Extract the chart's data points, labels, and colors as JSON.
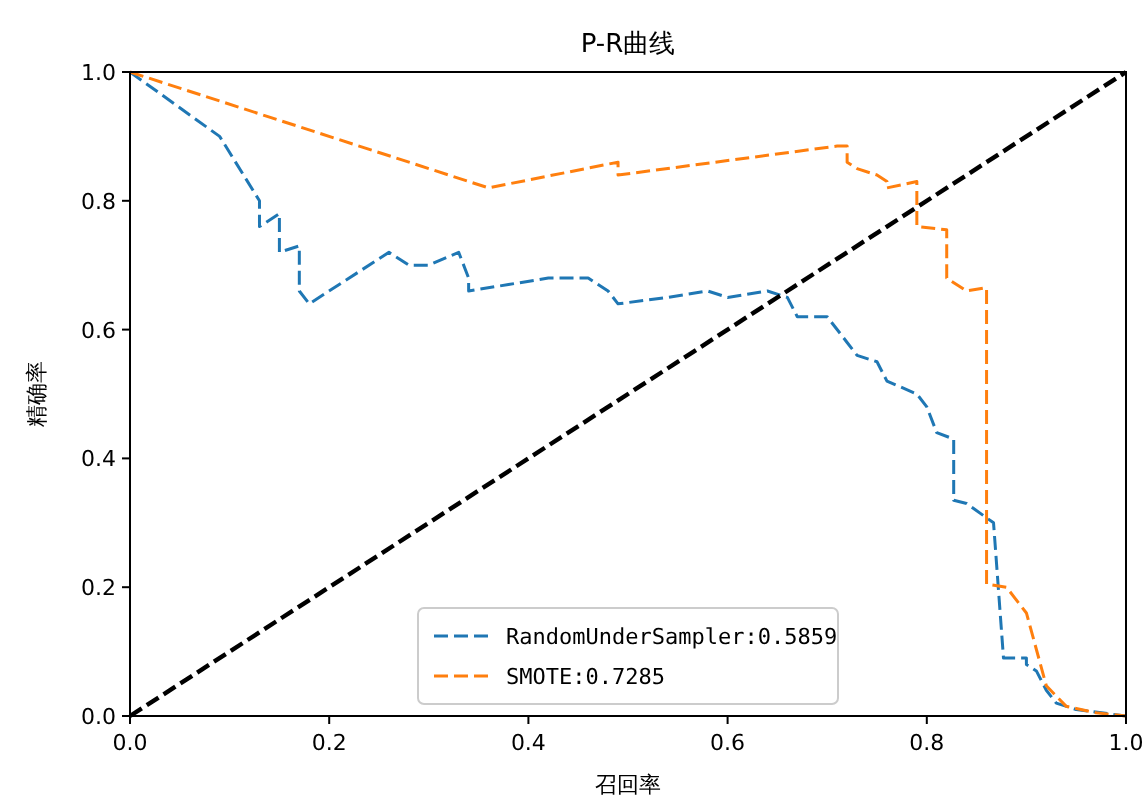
{
  "chart_data": {
    "type": "line",
    "title": "P-R曲线",
    "xlabel": "召回率",
    "ylabel": "精确率",
    "xlim": [
      0,
      1
    ],
    "ylim": [
      0,
      1
    ],
    "xticks": [
      {
        "value": 0,
        "label": "0.0"
      },
      0.2,
      0.4,
      0.6,
      0.8,
      {
        "value": 1,
        "label": "1.0"
      }
    ],
    "yticks": [
      {
        "value": 0,
        "label": "0.0"
      },
      0.2,
      0.4,
      0.6,
      0.8,
      {
        "value": 1,
        "label": "1.0"
      }
    ],
    "grid": false,
    "legend": "bottom",
    "line_style": "dashed",
    "series": [
      {
        "name": "RandomUnderSampler:0.5859",
        "color": "#1f77b4",
        "x": [
          0,
          0.09,
          0.13,
          0.13,
          0.15,
          0.15,
          0.17,
          0.17,
          0.18,
          0.26,
          0.28,
          0.3,
          0.33,
          0.34,
          0.34,
          0.38,
          0.42,
          0.46,
          0.48,
          0.49,
          0.54,
          0.58,
          0.6,
          0.64,
          0.66,
          0.67,
          0.7,
          0.72,
          0.73,
          0.75,
          0.76,
          0.79,
          0.8,
          0.81,
          0.827,
          0.827,
          0.84,
          0.867,
          0.867,
          0.877,
          0.877,
          0.9,
          0.9,
          0.91,
          0.92,
          0.93,
          0.95,
          1
        ],
        "values": [
          1,
          0.9,
          0.8,
          0.76,
          0.78,
          0.72,
          0.73,
          0.66,
          0.64,
          0.72,
          0.7,
          0.7,
          0.72,
          0.68,
          0.66,
          0.67,
          0.68,
          0.68,
          0.66,
          0.64,
          0.65,
          0.66,
          0.65,
          0.66,
          0.65,
          0.62,
          0.62,
          0.58,
          0.56,
          0.55,
          0.52,
          0.5,
          0.48,
          0.44,
          0.43,
          0.335,
          0.33,
          0.3,
          0.3,
          0.09,
          0.09,
          0.09,
          0.08,
          0.07,
          0.04,
          0.02,
          0.01,
          0
        ]
      },
      {
        "name": "SMOTE:0.7285",
        "color": "#ff7f0e",
        "x": [
          0,
          0.36,
          0.49,
          0.49,
          0.71,
          0.72,
          0.72,
          0.73,
          0.75,
          0.76,
          0.76,
          0.79,
          0.79,
          0.82,
          0.82,
          0.84,
          0.86,
          0.86,
          0.88,
          0.9,
          0.92,
          0.94,
          0.97,
          1
        ],
        "values": [
          1,
          0.82,
          0.86,
          0.84,
          0.885,
          0.885,
          0.86,
          0.85,
          0.84,
          0.83,
          0.82,
          0.83,
          0.76,
          0.755,
          0.68,
          0.66,
          0.665,
          0.205,
          0.2,
          0.16,
          0.047,
          0.015,
          0.005,
          0
        ]
      },
      {
        "color": "#000000",
        "x": [
          0,
          1
        ],
        "values": [
          0,
          1
        ]
      }
    ]
  }
}
